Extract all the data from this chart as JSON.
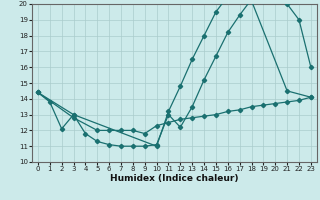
{
  "xlabel": "Humidex (Indice chaleur)",
  "xlim": [
    -0.5,
    23.5
  ],
  "ylim": [
    10,
    20
  ],
  "yticks": [
    10,
    11,
    12,
    13,
    14,
    15,
    16,
    17,
    18,
    19,
    20
  ],
  "xticks": [
    0,
    1,
    2,
    3,
    4,
    5,
    6,
    7,
    8,
    9,
    10,
    11,
    12,
    13,
    14,
    15,
    16,
    17,
    18,
    19,
    20,
    21,
    22,
    23
  ],
  "background_color": "#cceaea",
  "grid_color": "#aacccc",
  "line_color": "#1a7070",
  "line1_x": [
    0,
    1,
    2,
    3,
    4,
    5,
    6,
    7,
    8,
    9,
    10,
    11,
    12,
    13,
    14,
    15,
    16,
    17,
    18,
    19,
    20,
    21,
    22,
    23
  ],
  "line1_y": [
    14.4,
    13.8,
    12.1,
    13.0,
    11.8,
    11.3,
    11.1,
    11.0,
    11.0,
    11.0,
    11.1,
    13.0,
    12.2,
    13.5,
    15.2,
    16.7,
    18.2,
    19.3,
    20.3,
    20.2,
    20.2,
    20.0,
    19.0,
    16.0
  ],
  "line2_x": [
    0,
    3,
    10,
    11,
    12,
    13,
    14,
    15,
    16,
    17,
    18,
    21,
    23
  ],
  "line2_y": [
    14.4,
    13.0,
    11.0,
    13.2,
    14.8,
    16.5,
    18.0,
    19.5,
    20.5,
    20.5,
    20.2,
    14.5,
    14.1
  ],
  "line3_x": [
    0,
    3,
    5,
    6,
    7,
    8,
    9,
    10,
    11,
    12,
    13,
    14,
    15,
    16,
    17,
    18,
    19,
    20,
    21,
    22,
    23
  ],
  "line3_y": [
    14.4,
    12.8,
    12.0,
    12.0,
    12.0,
    12.0,
    11.8,
    12.3,
    12.5,
    12.7,
    12.8,
    12.9,
    13.0,
    13.2,
    13.3,
    13.5,
    13.6,
    13.7,
    13.8,
    13.9,
    14.1
  ]
}
